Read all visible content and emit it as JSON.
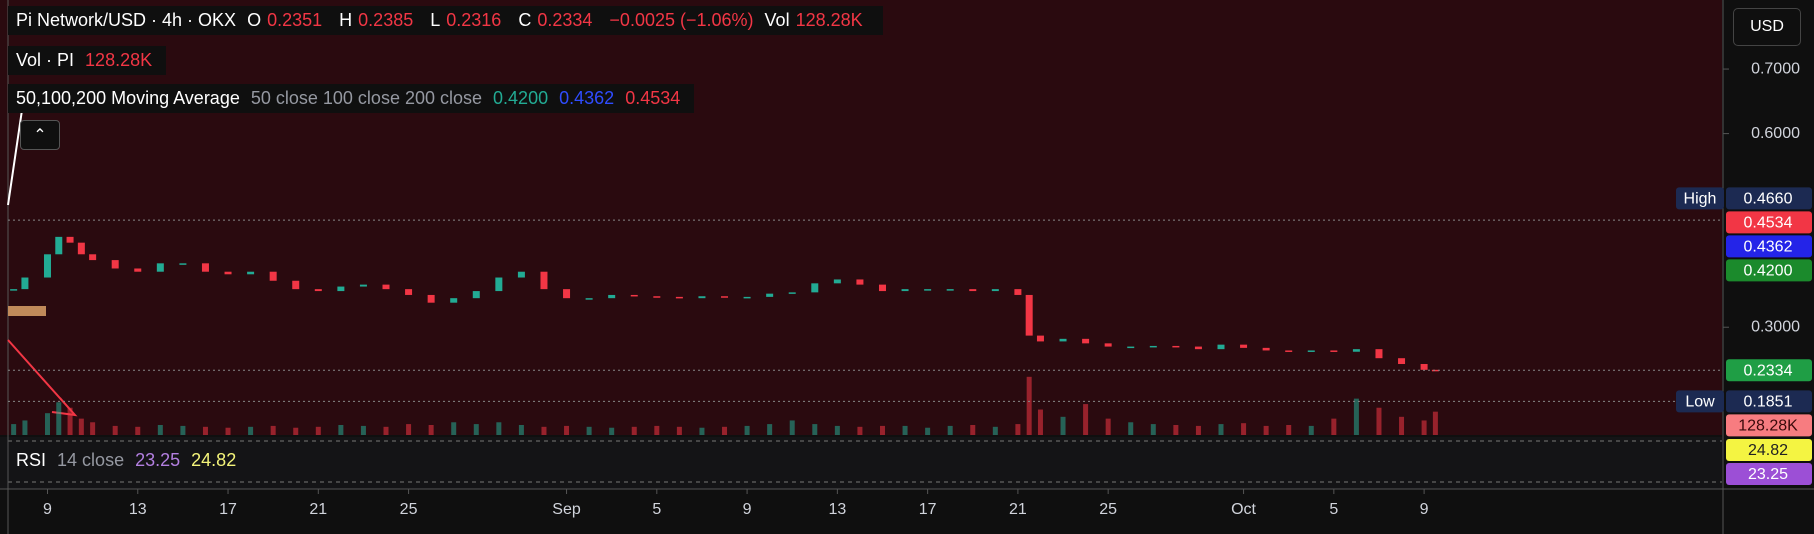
{
  "header": {
    "symbol": "Pi Network/USD · 4h · OKX",
    "o_label": "O",
    "open": "0.2351",
    "h_label": "H",
    "high": "0.2385",
    "l_label": "L",
    "low": "0.2316",
    "c_label": "C",
    "close": "0.2334",
    "change": "−0.0025 (−1.06%)",
    "vol_label": "Vol",
    "vol": "128.28K",
    "volume_indicator": "Vol · PI",
    "volume_value": "128.28K",
    "ma_name": "50,100,200 Moving Average",
    "ma_params": "50 close 100 close 200 close",
    "ma_values": [
      "0.4200",
      "0.4362",
      "0.4534"
    ],
    "rsi_name": "RSI",
    "rsi_params": "14 close",
    "rsi_values": [
      "23.25",
      "24.82"
    ],
    "currency": "USD"
  },
  "chart_data": {
    "type": "candlestick",
    "x": [
      7.5,
      8,
      9,
      9.5,
      10,
      10.5,
      11,
      12,
      13,
      14,
      15,
      16,
      17,
      18,
      19,
      20,
      21,
      22,
      23,
      24,
      25,
      26,
      27,
      28,
      29,
      30,
      31,
      32,
      33,
      34,
      35,
      36,
      37,
      38,
      39,
      40,
      41,
      42,
      43,
      44,
      45,
      46,
      47,
      48,
      49,
      50,
      51,
      52,
      52.5,
      53,
      54,
      55,
      56,
      57,
      58,
      59,
      60,
      61,
      62,
      63,
      64,
      65,
      66,
      67,
      68,
      69,
      70,
      70.5
    ],
    "series": [
      {
        "name": "Pi Network/USD",
        "up_color": "#22ab94",
        "down_color": "#f23645",
        "values": [
          0.359,
          0.377,
          0.413,
          0.44,
          0.431,
          0.413,
          0.404,
          0.391,
          0.386,
          0.399,
          0.399,
          0.386,
          0.382,
          0.386,
          0.372,
          0.359,
          0.356,
          0.363,
          0.366,
          0.359,
          0.35,
          0.338,
          0.345,
          0.356,
          0.377,
          0.386,
          0.359,
          0.345,
          0.345,
          0.35,
          0.348,
          0.347,
          0.345,
          0.348,
          0.347,
          0.347,
          0.352,
          0.354,
          0.368,
          0.374,
          0.366,
          0.356,
          0.359,
          0.359,
          0.359,
          0.356,
          0.359,
          0.35,
          0.287,
          0.278,
          0.282,
          0.275,
          0.27,
          0.27,
          0.271,
          0.27,
          0.266,
          0.273,
          0.268,
          0.264,
          0.262,
          0.264,
          0.262,
          0.266,
          0.252,
          0.243,
          0.234,
          0.2334
        ]
      },
      {
        "name": "Vol",
        "values": [
          60,
          80,
          120,
          180,
          150,
          90,
          70,
          50,
          45,
          55,
          50,
          45,
          40,
          45,
          50,
          40,
          45,
          55,
          50,
          45,
          60,
          55,
          70,
          60,
          70,
          55,
          45,
          50,
          45,
          40,
          45,
          50,
          45,
          40,
          45,
          50,
          60,
          80,
          60,
          50,
          45,
          50,
          50,
          40,
          50,
          55,
          45,
          60,
          320,
          140,
          100,
          170,
          90,
          70,
          60,
          55,
          50,
          60,
          65,
          50,
          55,
          50,
          90,
          200,
          150,
          100,
          80,
          128.28
        ]
      }
    ],
    "xlim": [
      7.25,
      83.2
    ],
    "xticks": [
      {
        "value": 9,
        "label": "9"
      },
      {
        "value": 13,
        "label": "13"
      },
      {
        "value": 17,
        "label": "17"
      },
      {
        "value": 21,
        "label": "21"
      },
      {
        "value": 25,
        "label": "25"
      },
      {
        "value": 32,
        "label": "Sep"
      },
      {
        "value": 36,
        "label": "5"
      },
      {
        "value": 40,
        "label": "9"
      },
      {
        "value": 44,
        "label": "13"
      },
      {
        "value": 48,
        "label": "17"
      },
      {
        "value": 52,
        "label": "21"
      },
      {
        "value": 56,
        "label": "25"
      },
      {
        "value": 62,
        "label": "Oct"
      },
      {
        "value": 66,
        "label": "5"
      },
      {
        "value": 70,
        "label": "9"
      }
    ],
    "ylim": [
      0.133,
      0.807
    ],
    "yticks": [
      {
        "value": 0.7,
        "label": "0.7000"
      },
      {
        "value": 0.6,
        "label": "0.6000"
      },
      {
        "value": 0.3,
        "label": "0.3000"
      }
    ],
    "volume_ylim": [
      0,
      330
    ],
    "price_labels": [
      {
        "name": "High",
        "value": 0.466,
        "label": "0.4660",
        "color": "#1c2a52",
        "line": true
      },
      {
        "value": 0.4534,
        "label": "0.4534",
        "color": "#f23645"
      },
      {
        "value": 0.4362,
        "label": "0.4362",
        "color": "#2424e8"
      },
      {
        "value": 0.42,
        "label": "0.4200",
        "color": "#1b8a2c"
      },
      {
        "value": 0.2334,
        "label": "0.2334",
        "color": "#1f9e45",
        "line": true
      },
      {
        "name": "Low",
        "value": 0.1851,
        "label": "0.1851",
        "color": "#1c2a52",
        "line": true
      }
    ],
    "volume_label": {
      "value": 128.28,
      "label": "128.28K",
      "color": "#f77c80"
    },
    "rsi_labels": [
      {
        "value": 24.82,
        "color": "#f4f442"
      },
      {
        "value": 23.25,
        "color": "#9c4fd6"
      }
    ]
  }
}
